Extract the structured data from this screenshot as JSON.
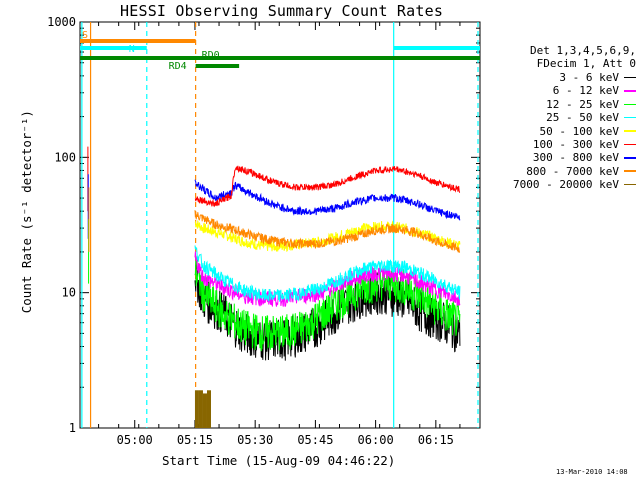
{
  "chart_data": {
    "type": "line",
    "title": "HESSI Observing Summary Count Rates",
    "xlabel": "Start Time (15-Aug-09 04:46:22)",
    "ylabel": "Count Rate (s⁻¹ detector⁻¹)",
    "yscale": "log",
    "ylim": [
      1,
      1000
    ],
    "xlim": [
      "04:46:22",
      "06:26:00"
    ],
    "x_ticks": [
      "05:00",
      "05:15",
      "05:30",
      "05:45",
      "06:00",
      "06:15"
    ],
    "y_ticks": [
      "1",
      "10",
      "100",
      "1000"
    ],
    "grid": false,
    "legend_position": "right",
    "legend_header": [
      "Det 1,3,4,5,6,9,",
      "FDecim 1, Att 0"
    ],
    "series": [
      {
        "name": "3 - 6 keV",
        "color": "#000000",
        "x": [
          "05:15",
          "05:17",
          "05:22",
          "05:27",
          "05:32",
          "05:37",
          "05:42",
          "05:47",
          "05:52",
          "05:57",
          "06:02",
          "06:07",
          "06:12",
          "06:17",
          "06:21"
        ],
        "values": [
          14,
          9,
          7,
          5,
          4.5,
          4.5,
          5,
          6,
          8,
          9.5,
          10,
          9,
          7,
          6,
          5
        ]
      },
      {
        "name": "6 - 12 keV",
        "color": "#ff00ff",
        "x": [
          "05:15",
          "05:17",
          "05:22",
          "05:27",
          "05:32",
          "05:37",
          "05:42",
          "05:47",
          "05:52",
          "05:57",
          "06:02",
          "06:07",
          "06:12",
          "06:17",
          "06:21"
        ],
        "values": [
          18,
          13,
          11,
          9.5,
          9,
          9,
          9.5,
          10,
          12,
          13.5,
          14,
          13.5,
          11.5,
          10,
          9
        ]
      },
      {
        "name": "12 - 25 keV",
        "color": "#00ff00",
        "x": [
          "05:15",
          "05:17",
          "05:22",
          "05:27",
          "05:32",
          "05:37",
          "05:42",
          "05:47",
          "05:52",
          "05:57",
          "06:02",
          "06:07",
          "06:12",
          "06:17",
          "06:21"
        ],
        "values": [
          15,
          10,
          7,
          5.5,
          5,
          5,
          5.5,
          7,
          9,
          11,
          12,
          11,
          9,
          7,
          6
        ]
      },
      {
        "name": "25 - 50 keV",
        "color": "#00ffff",
        "x": [
          "05:15",
          "05:17",
          "05:22",
          "05:27",
          "05:32",
          "05:37",
          "05:42",
          "05:47",
          "05:52",
          "05:57",
          "06:02",
          "06:07",
          "06:12",
          "06:17",
          "06:21"
        ],
        "values": [
          21,
          16,
          12.5,
          10.5,
          9.5,
          9.5,
          10,
          11,
          13,
          15,
          16,
          15.5,
          13.5,
          11.5,
          10
        ]
      },
      {
        "name": "50 - 100 keV",
        "color": "#ffff00",
        "x": [
          "05:15",
          "05:17",
          "05:22",
          "05:27",
          "05:32",
          "05:37",
          "05:42",
          "05:47",
          "05:52",
          "05:57",
          "06:02",
          "06:07",
          "06:12",
          "06:17",
          "06:21"
        ],
        "values": [
          33,
          30,
          27,
          24,
          22,
          22,
          23,
          24,
          27,
          30,
          31,
          30,
          27,
          24,
          22
        ]
      },
      {
        "name": "100 - 300 keV",
        "color": "#ff0000",
        "x": [
          "05:15",
          "05:20",
          "05:24",
          "05:25",
          "05:30",
          "05:35",
          "05:40",
          "05:45",
          "05:50",
          "05:55",
          "06:00",
          "06:05",
          "06:10",
          "06:15",
          "06:21"
        ],
        "values": [
          50,
          45,
          52,
          85,
          75,
          65,
          60,
          60,
          63,
          72,
          80,
          82,
          75,
          65,
          58
        ]
      },
      {
        "name": "300 - 800 keV",
        "color": "#0000ff",
        "x": [
          "05:15",
          "05:20",
          "05:24",
          "05:25",
          "05:30",
          "05:35",
          "05:40",
          "05:45",
          "05:50",
          "05:55",
          "06:00",
          "06:05",
          "06:10",
          "06:15",
          "06:21"
        ],
        "values": [
          65,
          50,
          55,
          62,
          52,
          44,
          40,
          40,
          42,
          47,
          50,
          50,
          46,
          40,
          36
        ]
      },
      {
        "name": "800 - 7000 keV",
        "color": "#ff8800",
        "x": [
          "05:15",
          "05:20",
          "05:25",
          "05:30",
          "05:35",
          "05:40",
          "05:45",
          "05:50",
          "05:55",
          "06:00",
          "06:05",
          "06:10",
          "06:15",
          "06:21"
        ],
        "values": [
          38,
          32,
          29,
          26,
          24,
          23,
          23,
          24,
          26,
          29,
          30,
          28,
          24,
          21
        ]
      },
      {
        "name": "7000 - 20000 keV",
        "color": "#886600",
        "x": [
          "05:15",
          "05:16",
          "05:17",
          "05:18"
        ],
        "values": [
          1.9,
          1.9,
          1.8,
          1.9
        ]
      }
    ],
    "annotations": [
      {
        "label": "S",
        "color": "#ff8800",
        "start": "04:46:22",
        "end": "05:15:10",
        "level": "top"
      },
      {
        "label": "N",
        "color": "#00ffff",
        "start": "04:46:22",
        "end": "05:03:00",
        "level": "upper"
      },
      {
        "label": "",
        "color": "#00ffff",
        "start": "06:04:30",
        "end": "06:26:00",
        "level": "upper"
      },
      {
        "label": "",
        "color": "#008800",
        "start": "04:46:22",
        "end": "06:26:00",
        "level": "middle"
      },
      {
        "label": "RD4",
        "color": "#008800",
        "start": "05:15:10",
        "end": "05:26:00",
        "level": "lower"
      },
      {
        "label": "RD0",
        "color": "#008800",
        "start": "05:15:10",
        "end": "05:15:10",
        "level": "marker"
      }
    ],
    "vertical_markers": [
      {
        "x": "04:46:50",
        "color": "#00ffff",
        "style": "solid"
      },
      {
        "x": "04:49:00",
        "color": "#ff8800",
        "style": "solid"
      },
      {
        "x": "05:03:00",
        "color": "#00ffff",
        "style": "dashed"
      },
      {
        "x": "05:15:10",
        "color": "#ff8800",
        "style": "dashed"
      },
      {
        "x": "06:04:30",
        "color": "#00ffff",
        "style": "solid"
      },
      {
        "x": "06:25:30",
        "color": "#00ffff",
        "style": "dashed"
      }
    ]
  },
  "timestamp": "13-Mar-2010 14:08"
}
